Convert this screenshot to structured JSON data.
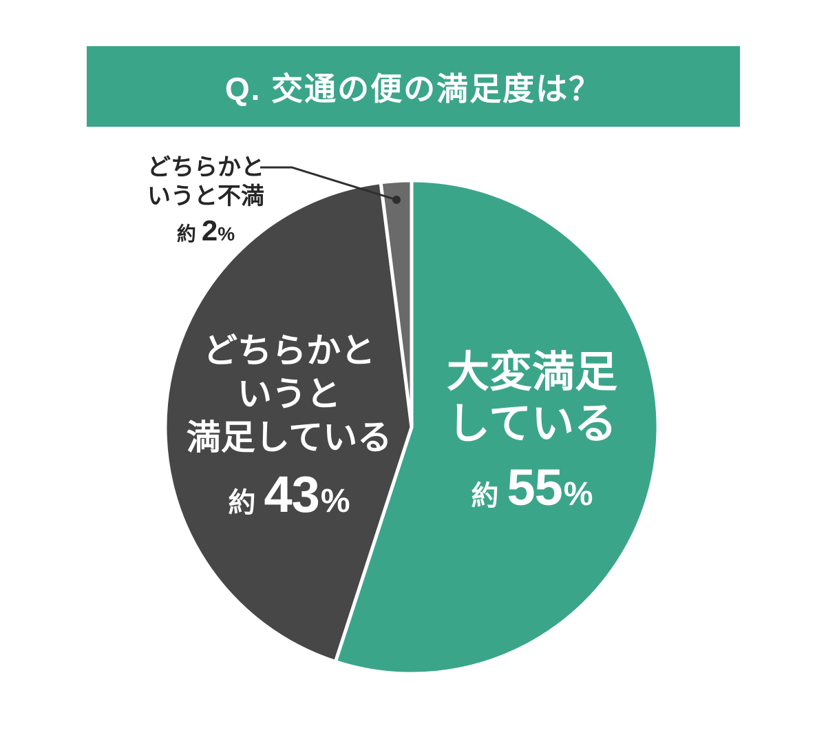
{
  "header": {
    "title": "Q. 交通の便の満足度は？",
    "background": "#3BA58A",
    "text_color": "#ffffff"
  },
  "chart_data": {
    "type": "pie",
    "title": "Q. 交通の便の満足度は？",
    "unit": "%",
    "start_angle_deg": 0,
    "direction": "clockwise",
    "separator_color": "#ffffff",
    "leader_line_color": "#2e2e2e",
    "slices": [
      {
        "name": "大変満足している",
        "label_lines": [
          "大変満足",
          "している"
        ],
        "approx_prefix": "約",
        "value": 55,
        "percent_sign": "%",
        "color": "#3BA58A",
        "label_color": "#ffffff"
      },
      {
        "name": "どちらかというと満足している",
        "label_lines": [
          "どちらかと",
          "いうと",
          "満足している"
        ],
        "approx_prefix": "約",
        "value": 43,
        "percent_sign": "%",
        "color": "#474747",
        "label_color": "#ffffff"
      },
      {
        "name": "どちらかというと不満",
        "label_lines": [
          "どちらかと",
          "いうと不満"
        ],
        "approx_prefix": "約",
        "value": 2,
        "percent_sign": "%",
        "color": "#6A6A6A",
        "label_color": "#262626",
        "callout": true
      }
    ]
  }
}
